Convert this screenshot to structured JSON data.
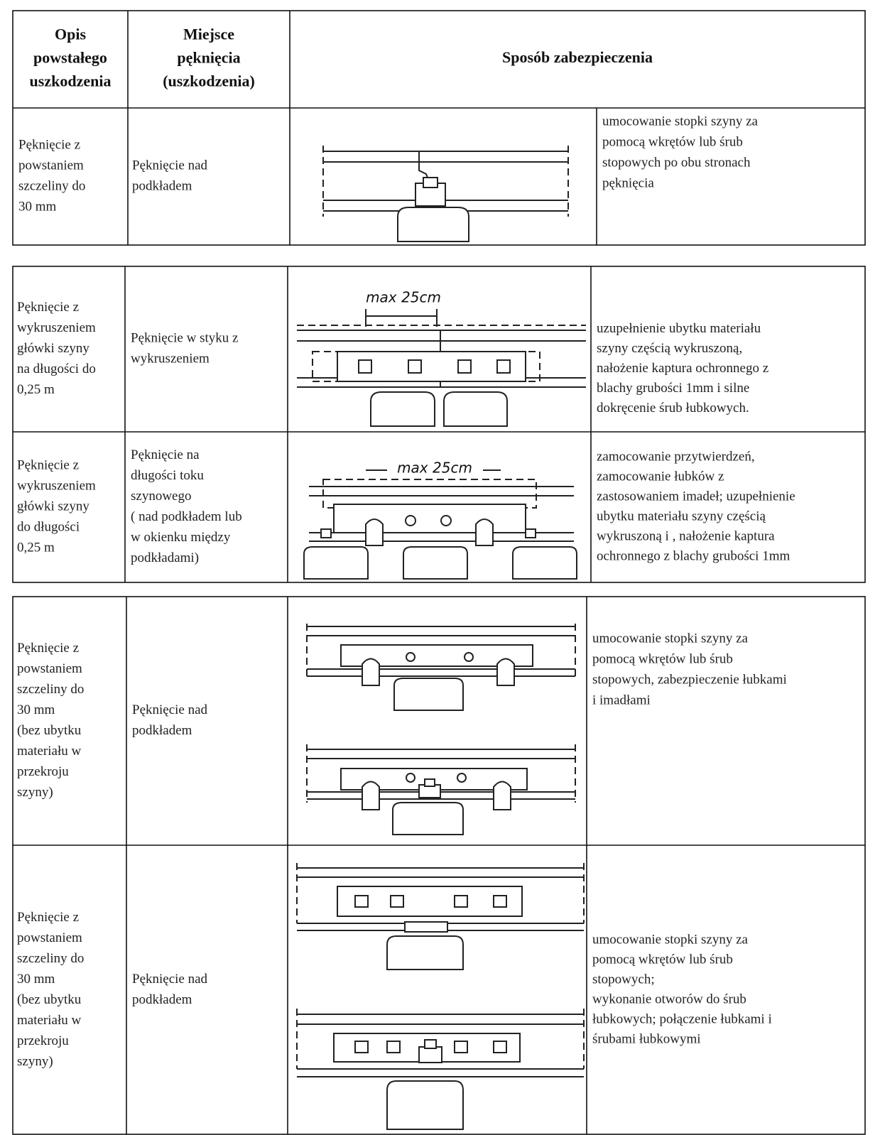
{
  "header": {
    "description": [
      "Opis",
      "powstałego",
      "uszkodzenia"
    ],
    "location": [
      "Miejsce",
      "pęknięcia",
      "(uszkodzenia)"
    ],
    "method": "Sposób zabezpieczenia"
  },
  "rows": [
    {
      "description": [
        "Pęknięcie z",
        "powstaniem",
        "szczeliny do",
        "30 mm"
      ],
      "location": [
        "Pęknięcie nad",
        "podkładem"
      ],
      "method": [
        "umocowanie stopki szyny za",
        "pomocą wkrętów lub śrub",
        "stopowych po obu stronach",
        "pęknięcia"
      ]
    },
    {
      "description": [
        "Pęknięcie z",
        "wykruszeniem",
        "główki szyny",
        "na długości do",
        "0,25 m"
      ],
      "location": [
        "Pęknięcie w styku z",
        "wykruszeniem"
      ],
      "diagram_label": "max 25cm",
      "method": [
        "uzupełnienie ubytku materiału",
        "szyny częścią wykruszoną,",
        "nałożenie kaptura ochronnego z",
        "blachy grubości 1mm i silne",
        "dokręcenie śrub łubkowych."
      ]
    },
    {
      "description": [
        "Pęknięcie z",
        "wykruszeniem",
        "główki szyny",
        "do długości",
        "0,25 m"
      ],
      "location": [
        "Pęknięcie na",
        "długości toku",
        "szynowego",
        "( nad podkładem lub",
        "w okienku między",
        "podkładami)"
      ],
      "diagram_label": "max 25cm",
      "method": [
        "zamocowanie przytwierdzeń,",
        "zamocowanie łubków z",
        "zastosowaniem imadeł; uzupełnienie",
        "ubytku materiału szyny częścią",
        "wykruszoną i , nałożenie kaptura",
        "ochronnego z blachy grubości 1mm"
      ]
    },
    {
      "description": [
        "Pęknięcie z",
        "powstaniem",
        "szczeliny do",
        "30 mm",
        "(bez ubytku",
        "materiału w",
        "przekroju",
        "szyny)"
      ],
      "location": [
        "Pęknięcie nad",
        "podkładem"
      ],
      "method": [
        "umocowanie stopki szyny za",
        "pomocą wkrętów lub śrub",
        "stopowych, zabezpieczenie łubkami",
        "i imadłami"
      ]
    },
    {
      "description": [
        "Pęknięcie z",
        "powstaniem",
        "szczeliny do",
        "30 mm",
        "(bez ubytku",
        "materiału w",
        "przekroju",
        "szyny)"
      ],
      "location": [
        "Pęknięcie nad",
        "podkładem"
      ],
      "method": [
        "umocowanie stopki szyny za",
        "pomocą wkrętów lub śrub",
        "stopowych;",
        "wykonanie otworów do śrub",
        "łubkowych; połączenie łubkami i",
        "śrubami łubkowymi"
      ]
    }
  ]
}
